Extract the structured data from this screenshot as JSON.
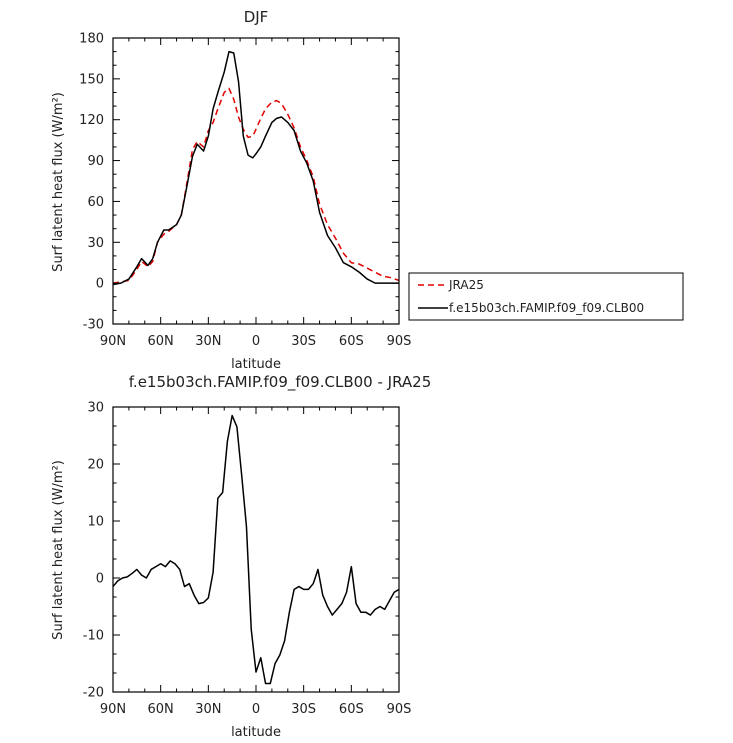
{
  "chart_data": [
    {
      "type": "line",
      "title": "DJF",
      "xlabel": "latitude",
      "ylabel": "Surf latent heat flux (W/m²)",
      "xlim": [
        -90,
        90
      ],
      "ylim": [
        -30,
        180
      ],
      "xticks": [
        -90,
        -60,
        -30,
        0,
        30,
        60,
        90
      ],
      "xtick_labels": [
        "90N",
        "60N",
        "30N",
        "0",
        "30S",
        "60S",
        "90S"
      ],
      "yticks": [
        -30,
        0,
        30,
        60,
        90,
        120,
        150,
        180
      ],
      "grid": false,
      "legend_position": "right-middle",
      "x": [
        -90,
        -85,
        -80,
        -75,
        -72,
        -68,
        -65,
        -62,
        -58,
        -55,
        -50,
        -47,
        -44,
        -40,
        -37,
        -33,
        -30,
        -27,
        -24,
        -20,
        -17,
        -14,
        -11,
        -8,
        -5,
        -2,
        0,
        3,
        6,
        10,
        13,
        16,
        20,
        24,
        28,
        32,
        36,
        40,
        45,
        50,
        55,
        60,
        65,
        70,
        75,
        80,
        85,
        90
      ],
      "series": [
        {
          "name": "JRA25",
          "color": "#e00000",
          "dash": "dashed",
          "values": [
            0,
            1,
            2,
            10,
            16,
            12,
            16,
            30,
            36,
            38,
            43,
            50,
            70,
            98,
            104,
            100,
            112,
            118,
            128,
            140,
            143,
            135,
            122,
            113,
            107,
            108,
            113,
            121,
            128,
            133,
            134,
            132,
            124,
            114,
            100,
            90,
            78,
            58,
            43,
            33,
            22,
            15,
            14,
            11,
            8,
            5,
            4,
            2
          ]
        },
        {
          "name": "f.e15b03ch.FAMIP.f09_f09.CLB00",
          "color": "#000000",
          "dash": "solid",
          "values": [
            -1,
            0,
            3,
            12,
            18,
            13,
            18,
            30,
            39,
            39,
            43,
            50,
            68,
            93,
            102,
            97,
            108,
            128,
            140,
            155,
            170,
            169,
            148,
            108,
            94,
            92,
            95,
            100,
            108,
            118,
            121,
            122,
            118,
            112,
            97,
            88,
            75,
            52,
            35,
            26,
            15,
            12,
            8,
            3,
            0,
            0,
            0,
            0
          ]
        }
      ]
    },
    {
      "type": "line",
      "title": "f.e15b03ch.FAMIP.f09_f09.CLB00 - JRA25",
      "xlabel": "latitude",
      "ylabel": "Surf latent heat flux (W/m²)",
      "xlim": [
        -90,
        90
      ],
      "ylim": [
        -20,
        30
      ],
      "xticks": [
        -90,
        -60,
        -30,
        0,
        30,
        60,
        90
      ],
      "xtick_labels": [
        "90N",
        "60N",
        "30N",
        "0",
        "30S",
        "60S",
        "90S"
      ],
      "yticks": [
        -20,
        -10,
        0,
        10,
        20,
        30
      ],
      "grid": false,
      "x": [
        -90,
        -87,
        -84,
        -81,
        -78,
        -75,
        -72,
        -69,
        -66,
        -63,
        -60,
        -57,
        -54,
        -51,
        -48,
        -45,
        -42,
        -39,
        -36,
        -33,
        -30,
        -27,
        -24,
        -21,
        -18,
        -15,
        -12,
        -9,
        -6,
        -3,
        0,
        3,
        6,
        9,
        12,
        15,
        18,
        21,
        24,
        27,
        30,
        33,
        36,
        39,
        42,
        45,
        48,
        51,
        54,
        57,
        60,
        63,
        66,
        69,
        72,
        75,
        78,
        81,
        84,
        87,
        90
      ],
      "series": [
        {
          "name": "",
          "color": "#000000",
          "dash": "solid",
          "values": [
            -1.5,
            -0.5,
            0,
            0.2,
            0.8,
            1.5,
            0.5,
            0,
            1.5,
            2,
            2.5,
            2,
            3,
            2.5,
            1.5,
            -1.5,
            -1,
            -3,
            -4.5,
            -4.3,
            -3.5,
            1,
            14,
            15,
            24,
            28.5,
            26.5,
            18,
            9,
            -9,
            -16.5,
            -14,
            -18.5,
            -18.5,
            -15,
            -13.5,
            -11,
            -6,
            -2,
            -1.5,
            -2,
            -2,
            -1,
            1.5,
            -3,
            -5,
            -6.5,
            -5.5,
            -4.5,
            -2.5,
            2,
            -4.5,
            -6,
            -6,
            -6.5,
            -5.5,
            -5,
            -5.5,
            -4,
            -2.5,
            -2
          ]
        }
      ]
    }
  ]
}
